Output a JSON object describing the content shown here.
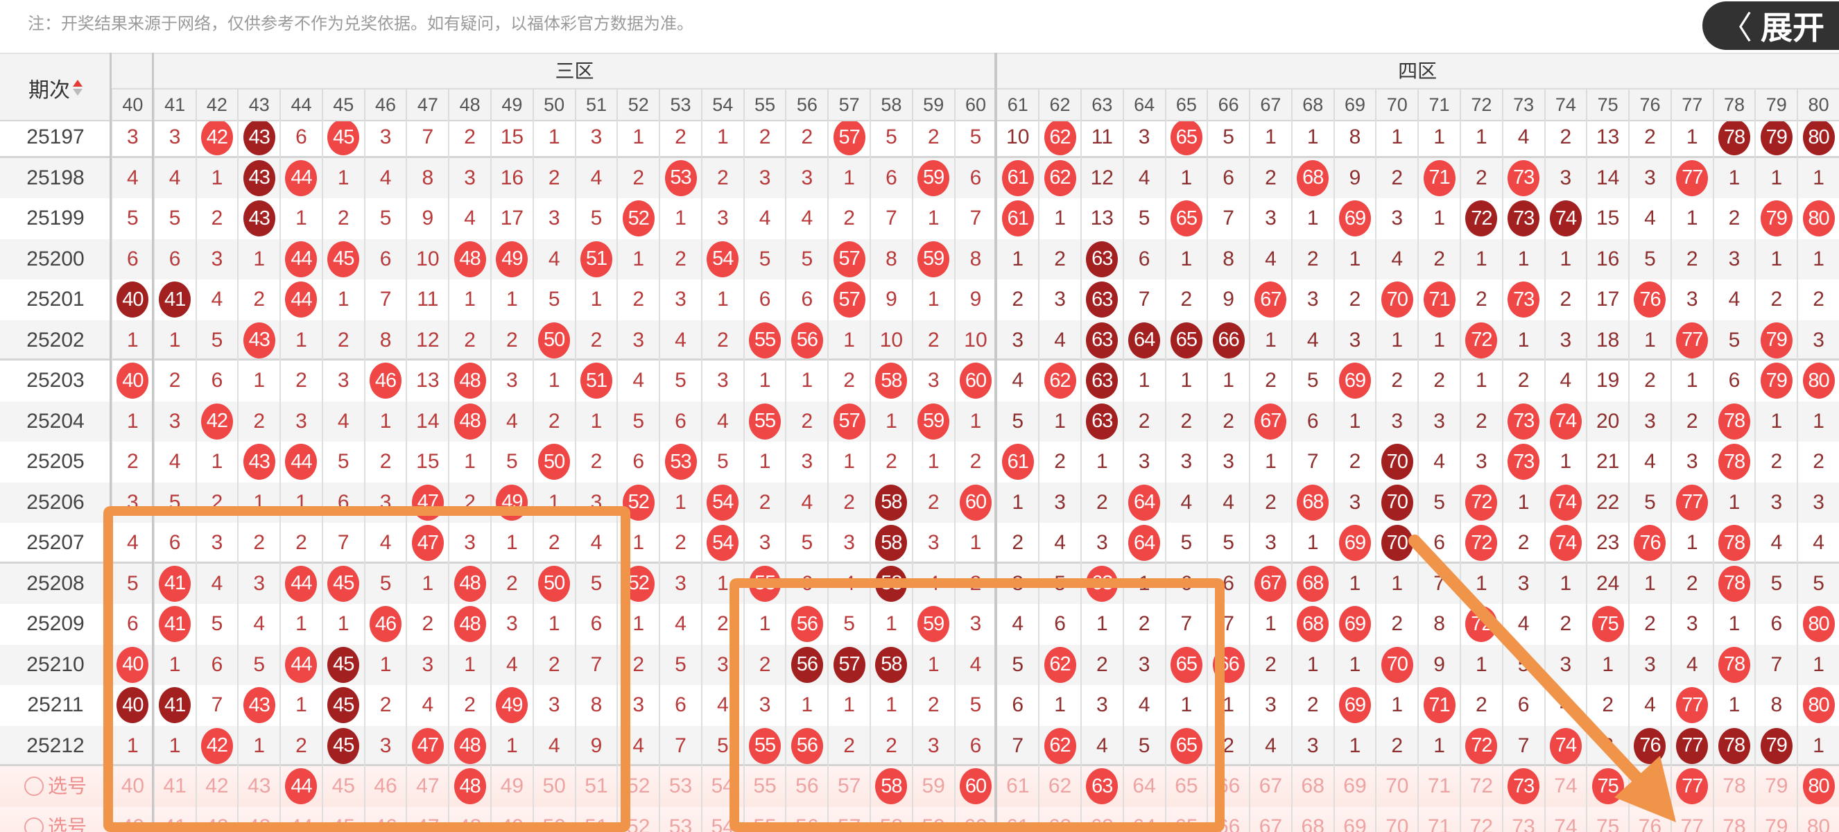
{
  "note": "注：开奖结果来源于网络，仅供参考不作为兑奖依据。如有疑问，以福体彩官方数据为准。",
  "header": {
    "period_label": "期次",
    "regions": [
      {
        "label": "三区",
        "from": "41",
        "to": "60"
      },
      {
        "label": "四区",
        "from": "61",
        "to": "80"
      }
    ],
    "columns": [
      "40",
      "41",
      "42",
      "43",
      "44",
      "45",
      "46",
      "47",
      "48",
      "49",
      "50",
      "51",
      "52",
      "53",
      "54",
      "55",
      "56",
      "57",
      "58",
      "59",
      "60",
      "61",
      "62",
      "63",
      "64",
      "65",
      "66",
      "67",
      "68",
      "69",
      "70",
      "71",
      "72",
      "73",
      "74",
      "75",
      "76",
      "77",
      "78",
      "79",
      "80"
    ]
  },
  "colors": {
    "ball": "#ef4646",
    "ball_dark": "#a32020",
    "annotation": "#f0944a"
  },
  "rows": [
    {
      "period": "25197",
      "cells": [
        3,
        3,
        "42",
        "43",
        6,
        "45",
        3,
        7,
        2,
        15,
        1,
        3,
        1,
        2,
        1,
        2,
        2,
        "57",
        5,
        2,
        5,
        10,
        "62",
        11,
        3,
        "65",
        5,
        1,
        1,
        8,
        1,
        1,
        1,
        4,
        2,
        13,
        2,
        1,
        "78",
        "79",
        "80"
      ],
      "dark": [
        "43",
        "78",
        "79",
        "80"
      ]
    },
    {
      "period": "25198",
      "cells": [
        4,
        4,
        1,
        "43",
        "44",
        1,
        4,
        8,
        3,
        16,
        2,
        4,
        2,
        "53",
        2,
        3,
        3,
        1,
        6,
        "59",
        6,
        "61",
        "62",
        12,
        4,
        1,
        6,
        2,
        "68",
        9,
        2,
        "71",
        2,
        "73",
        3,
        14,
        3,
        "77",
        1,
        1,
        1
      ],
      "dark": [
        "43"
      ]
    },
    {
      "period": "25199",
      "cells": [
        5,
        5,
        2,
        "43",
        1,
        2,
        5,
        9,
        4,
        17,
        3,
        5,
        "52",
        1,
        3,
        4,
        4,
        2,
        7,
        1,
        7,
        "61",
        1,
        13,
        5,
        "65",
        7,
        3,
        1,
        "69",
        3,
        1,
        "72",
        "73",
        "74",
        15,
        4,
        1,
        2,
        "79",
        "80"
      ],
      "dark": [
        "43",
        "72",
        "73",
        "74"
      ]
    },
    {
      "period": "25200",
      "cells": [
        6,
        6,
        3,
        1,
        "44",
        "45",
        6,
        10,
        "48",
        "49",
        4,
        "51",
        1,
        2,
        "54",
        5,
        5,
        "57",
        8,
        "59",
        8,
        1,
        2,
        "63",
        6,
        1,
        8,
        4,
        2,
        1,
        4,
        2,
        1,
        1,
        1,
        16,
        5,
        2,
        3,
        1,
        1
      ],
      "dark": [
        "63"
      ]
    },
    {
      "period": "25201",
      "cells": [
        "40",
        "41",
        4,
        2,
        "44",
        1,
        7,
        11,
        1,
        1,
        5,
        1,
        2,
        3,
        1,
        6,
        6,
        "57",
        9,
        1,
        9,
        2,
        3,
        "63",
        7,
        2,
        9,
        "67",
        3,
        2,
        "70",
        "71",
        2,
        "73",
        2,
        17,
        "76",
        3,
        4,
        2,
        2
      ],
      "dark": [
        "40",
        "41",
        "63"
      ]
    },
    {
      "period": "25202",
      "cells": [
        1,
        1,
        5,
        "43",
        1,
        2,
        8,
        12,
        2,
        2,
        "50",
        2,
        3,
        4,
        2,
        "55",
        "56",
        1,
        10,
        2,
        10,
        3,
        4,
        "63",
        "64",
        "65",
        "66",
        1,
        4,
        3,
        1,
        1,
        "72",
        1,
        3,
        18,
        1,
        "77",
        5,
        "79",
        3
      ],
      "dark": [
        "63",
        "64",
        "65",
        "66"
      ]
    },
    {
      "period": "25203",
      "cells": [
        "40",
        2,
        6,
        1,
        2,
        3,
        "46",
        13,
        "48",
        3,
        1,
        "51",
        4,
        5,
        3,
        1,
        1,
        2,
        "58",
        3,
        "60",
        4,
        "62",
        "63",
        1,
        1,
        1,
        2,
        5,
        "69",
        2,
        2,
        1,
        2,
        4,
        19,
        2,
        1,
        6,
        "79",
        "80"
      ],
      "dark": [
        "63"
      ]
    },
    {
      "period": "25204",
      "cells": [
        1,
        3,
        "42",
        2,
        3,
        4,
        1,
        14,
        "48",
        4,
        2,
        1,
        5,
        6,
        4,
        "55",
        2,
        "57",
        1,
        "59",
        1,
        5,
        1,
        "63",
        2,
        2,
        2,
        "67",
        6,
        1,
        3,
        3,
        2,
        "73",
        "74",
        20,
        3,
        2,
        "78",
        1,
        1
      ],
      "dark": [
        "63"
      ]
    },
    {
      "period": "25205",
      "cells": [
        2,
        4,
        1,
        "43",
        "44",
        5,
        2,
        15,
        1,
        5,
        "50",
        2,
        6,
        "53",
        5,
        1,
        3,
        1,
        2,
        1,
        2,
        "61",
        2,
        1,
        3,
        3,
        3,
        1,
        7,
        2,
        "70",
        4,
        3,
        "73",
        1,
        21,
        4,
        3,
        "78",
        2,
        2
      ],
      "dark": [
        "70"
      ]
    },
    {
      "period": "25206",
      "cells": [
        3,
        5,
        2,
        1,
        1,
        6,
        3,
        "47",
        2,
        "49",
        1,
        3,
        "52",
        1,
        "54",
        2,
        4,
        2,
        "58",
        2,
        "60",
        1,
        3,
        2,
        "64",
        4,
        4,
        2,
        "68",
        3,
        "70",
        5,
        "72",
        1,
        "74",
        22,
        5,
        "77",
        1,
        3,
        3
      ],
      "dark": [
        "58",
        "70"
      ]
    },
    {
      "period": "25207",
      "cells": [
        4,
        6,
        3,
        2,
        2,
        7,
        4,
        "47",
        3,
        1,
        2,
        4,
        1,
        2,
        "54",
        3,
        5,
        3,
        "58",
        3,
        1,
        2,
        4,
        3,
        "64",
        5,
        5,
        3,
        1,
        "69",
        "70",
        6,
        "72",
        2,
        "74",
        23,
        "76",
        1,
        "78",
        4,
        4
      ],
      "dark": [
        "58",
        "70"
      ]
    },
    {
      "period": "25208",
      "cells": [
        5,
        "41",
        4,
        3,
        "44",
        "45",
        5,
        1,
        "48",
        2,
        "50",
        5,
        "52",
        3,
        1,
        "55",
        6,
        4,
        "58",
        4,
        2,
        3,
        5,
        "63",
        1,
        6,
        6,
        "67",
        "68",
        1,
        1,
        7,
        1,
        3,
        1,
        24,
        1,
        2,
        "78",
        5,
        5
      ],
      "dark": [
        "58"
      ]
    },
    {
      "period": "25209",
      "cells": [
        6,
        "41",
        5,
        4,
        1,
        1,
        "46",
        2,
        "48",
        3,
        1,
        6,
        1,
        4,
        2,
        1,
        "56",
        5,
        1,
        "59",
        3,
        4,
        6,
        1,
        2,
        7,
        7,
        1,
        "68",
        "69",
        2,
        8,
        "72",
        4,
        2,
        "75",
        2,
        3,
        1,
        6,
        "80"
      ],
      "dark": []
    },
    {
      "period": "25210",
      "cells": [
        "40",
        1,
        6,
        5,
        "44",
        "45",
        1,
        3,
        1,
        4,
        2,
        7,
        2,
        5,
        3,
        2,
        "56",
        "57",
        "58",
        1,
        4,
        5,
        "62",
        2,
        3,
        "65",
        "66",
        2,
        1,
        1,
        "70",
        9,
        1,
        5,
        3,
        1,
        3,
        4,
        "78",
        7,
        1
      ],
      "dark": [
        "45",
        "56",
        "57",
        "58"
      ]
    },
    {
      "period": "25211",
      "cells": [
        "40",
        "41",
        7,
        "43",
        1,
        "45",
        2,
        4,
        2,
        "49",
        3,
        8,
        3,
        6,
        4,
        3,
        1,
        1,
        1,
        2,
        5,
        6,
        1,
        3,
        4,
        1,
        1,
        3,
        2,
        "69",
        1,
        "71",
        2,
        6,
        4,
        2,
        4,
        "77",
        1,
        8,
        "80"
      ],
      "dark": [
        "40",
        "41",
        "45"
      ]
    },
    {
      "period": "25212",
      "cells": [
        1,
        1,
        "42",
        1,
        2,
        "45",
        3,
        "47",
        "48",
        1,
        4,
        9,
        4,
        7,
        5,
        "55",
        "56",
        2,
        2,
        3,
        6,
        7,
        "62",
        4,
        5,
        "65",
        2,
        4,
        3,
        1,
        2,
        1,
        "72",
        7,
        "74",
        3,
        "76",
        "77",
        "78",
        "79",
        1
      ],
      "dark": [
        "45",
        "76",
        "77",
        "78",
        "79"
      ]
    }
  ],
  "select_rows": [
    {
      "label": "选号",
      "highlighted": [
        "44",
        "48",
        "58",
        "60",
        "63",
        "73",
        "75",
        "77",
        "80"
      ]
    },
    {
      "label": "选号",
      "highlighted": []
    }
  ],
  "expand_button": {
    "label": "展开",
    "icon": "chevron-left-icon"
  }
}
